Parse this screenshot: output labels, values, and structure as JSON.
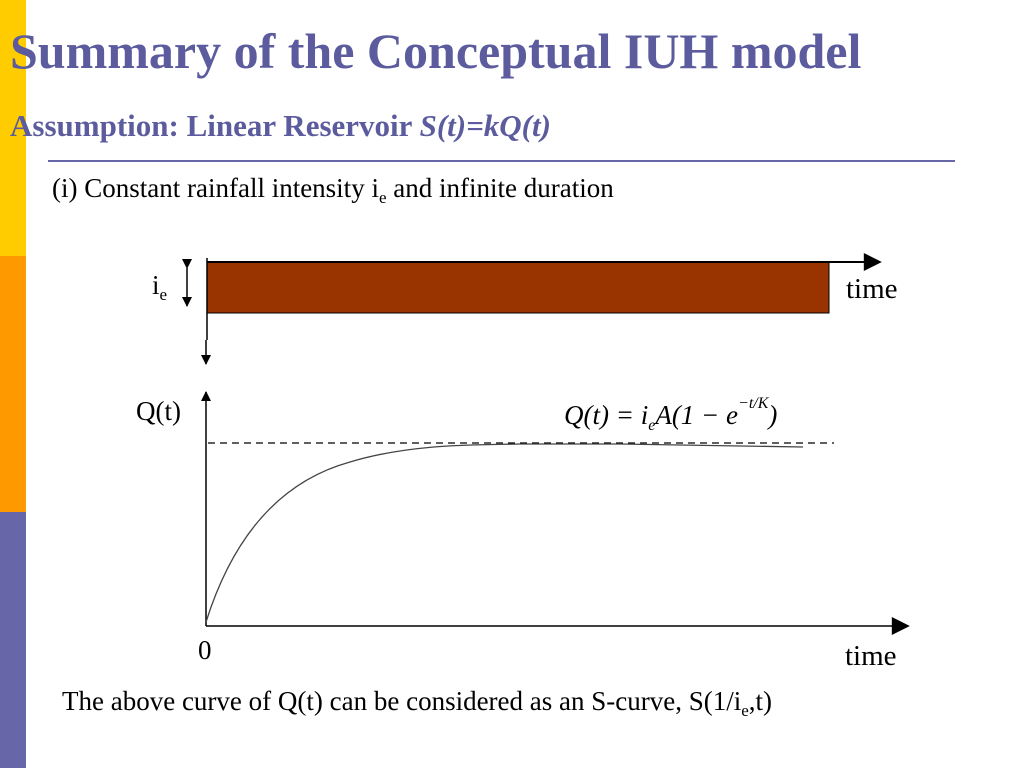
{
  "slide": {
    "title": "Summary of the Conceptual IUH model",
    "subtitle_prefix": "Assumption: Linear Reservoir ",
    "subtitle_formula": "S(t)=kQ(t)"
  },
  "figure": {
    "case_label": "(i) Constant rainfall intensity i",
    "case_label_sub": "e",
    "case_label_rest": " and infinite duration",
    "rain_label": "i",
    "rain_label_sub": "e",
    "time_label_top": "time",
    "q_label": "Q(t)",
    "equation_lhs": "Q(t) = i",
    "equation_sub": "e",
    "equation_mid": "A(1 − e",
    "equation_exp": "−t/K",
    "equation_end": ")",
    "origin_label": "0",
    "time_label_bottom": "time",
    "caption_main": "The above curve of Q(t) can be considered as an S-curve, S(1/i",
    "caption_sub": "e",
    "caption_end": ",t)"
  },
  "colors": {
    "bar_yellow": "#FFCC00",
    "bar_orange": "#FF9900",
    "bar_purple": "#6666A8",
    "title_color": "#5B5B9E",
    "rule_color": "#6666A8",
    "rain_fill": "#993300"
  }
}
